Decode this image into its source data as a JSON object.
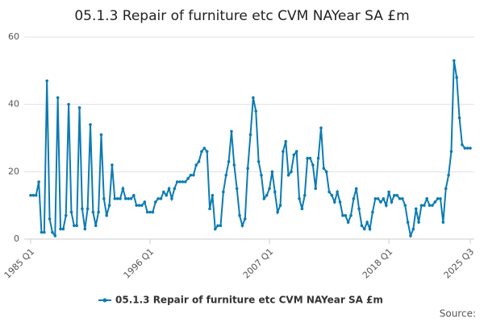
{
  "chart_data": {
    "type": "line",
    "title": "05.1.3 Repair of furniture etc CVM NAYear SA £m",
    "source": "Source:",
    "categories": [
      "1985 Q1",
      null,
      null,
      null,
      null,
      null,
      null,
      null,
      null,
      null,
      null,
      null,
      null,
      null,
      null,
      null,
      null,
      null,
      null,
      null,
      null,
      null,
      null,
      null,
      null,
      null,
      null,
      null,
      null,
      null,
      null,
      null,
      null,
      null,
      null,
      null,
      null,
      null,
      null,
      null,
      null,
      null,
      null,
      null,
      "1996 Q1",
      null,
      null,
      null,
      null,
      null,
      null,
      null,
      null,
      null,
      null,
      null,
      null,
      null,
      null,
      null,
      null,
      null,
      null,
      null,
      null,
      null,
      null,
      null,
      null,
      null,
      null,
      null,
      null,
      null,
      null,
      null,
      null,
      null,
      null,
      null,
      null,
      null,
      null,
      null,
      null,
      null,
      null,
      null,
      "2007 Q1",
      null,
      null,
      null,
      null,
      null,
      null,
      null,
      null,
      null,
      null,
      null,
      null,
      null,
      null,
      null,
      null,
      null,
      null,
      null,
      null,
      null,
      null,
      null,
      null,
      null,
      null,
      null,
      null,
      null,
      null,
      null,
      null,
      null,
      null,
      null,
      null,
      null,
      null,
      null,
      null,
      null,
      null,
      null,
      "2018 Q1",
      null,
      null,
      null,
      null,
      null,
      null,
      null,
      null,
      null,
      null,
      null,
      null,
      null,
      null,
      null,
      null,
      null,
      null,
      null,
      null,
      null,
      null,
      null,
      null,
      null,
      null,
      null,
      null,
      null,
      "2025 Q3"
    ],
    "series": [
      {
        "name": "05.1.3 Repair of furniture etc CVM NAYear SA £m",
        "color": "#0c7bb3",
        "values": [
          13,
          13,
          13,
          17,
          2,
          2,
          47,
          6,
          2,
          1,
          42,
          3,
          3,
          7,
          40,
          8,
          4,
          4,
          39,
          9,
          3,
          9,
          34,
          8,
          4,
          8,
          31,
          12,
          7,
          10,
          22,
          12,
          12,
          12,
          15,
          12,
          12,
          12,
          13,
          10,
          10,
          10,
          11,
          8,
          8,
          8,
          11,
          12,
          12,
          14,
          13,
          15,
          12,
          15,
          17,
          17,
          17,
          17,
          18,
          19,
          19,
          22,
          23,
          26,
          27,
          26,
          9,
          13,
          3,
          4,
          4,
          14,
          19,
          23,
          32,
          22,
          15,
          7,
          4,
          6,
          21,
          31,
          42,
          38,
          23,
          19,
          12,
          13,
          15,
          20,
          14,
          8,
          10,
          26,
          29,
          19,
          20,
          25,
          26,
          12,
          9,
          13,
          24,
          24,
          22,
          15,
          24,
          33,
          21,
          20,
          14,
          13,
          11,
          14,
          11,
          7,
          7,
          5,
          7,
          12,
          15,
          9,
          4,
          3,
          5,
          3,
          8,
          12,
          12,
          11,
          12,
          10,
          14,
          11,
          13,
          13,
          12,
          12,
          10,
          5,
          1,
          3,
          9,
          5,
          10,
          10,
          12,
          10,
          10,
          11,
          12,
          12,
          5,
          15,
          19,
          26,
          53,
          48,
          36,
          28,
          27,
          27,
          27
        ]
      }
    ],
    "ylim": [
      0,
      60
    ],
    "yticks": [
      0,
      20,
      40,
      60
    ],
    "grid": true,
    "legend": "bottom"
  }
}
